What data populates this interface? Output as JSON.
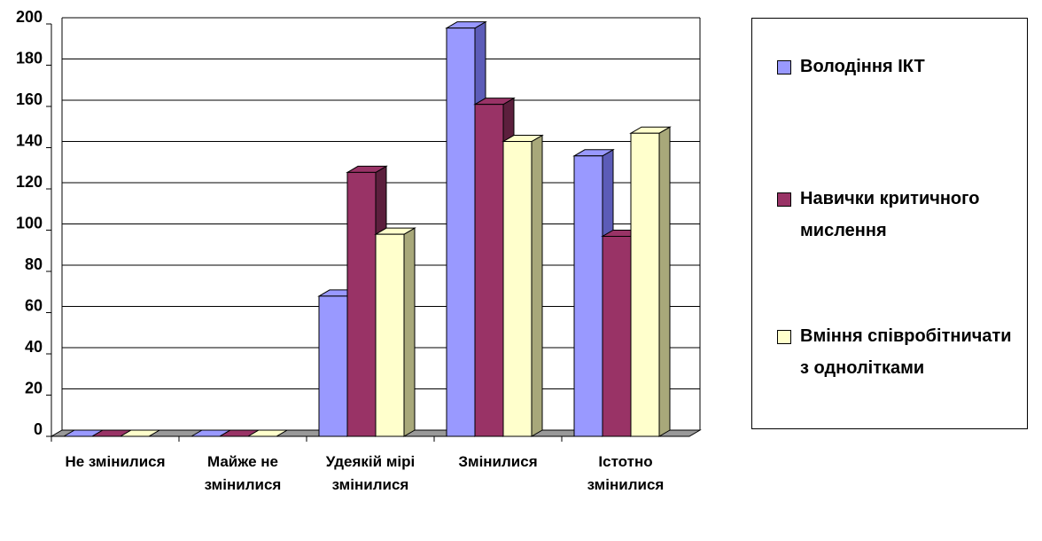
{
  "chart_data": {
    "type": "bar3d",
    "categories": [
      "Не змінилися",
      "Майже не змінилися",
      "Удеякій мірі змінилися",
      "Змінилися",
      "Істотно змінилися"
    ],
    "series": [
      {
        "name": "Володіння ІКТ",
        "color": "#9999ff",
        "side": "#5c5cb8",
        "values": [
          0,
          0,
          68,
          198,
          136
        ]
      },
      {
        "name": "Навички критичного мислення",
        "color": "#993366",
        "side": "#5c1f3d",
        "values": [
          0,
          0,
          128,
          161,
          97
        ]
      },
      {
        "name": "Вміння співробітничати з однолітками",
        "color": "#ffffcc",
        "side": "#a8a87a",
        "values": [
          0,
          0,
          98,
          143,
          147
        ]
      }
    ],
    "ylim": [
      0,
      200
    ],
    "yticks": [
      0,
      20,
      40,
      60,
      80,
      100,
      120,
      140,
      160,
      180,
      200
    ],
    "grid": true,
    "legend": "right"
  }
}
